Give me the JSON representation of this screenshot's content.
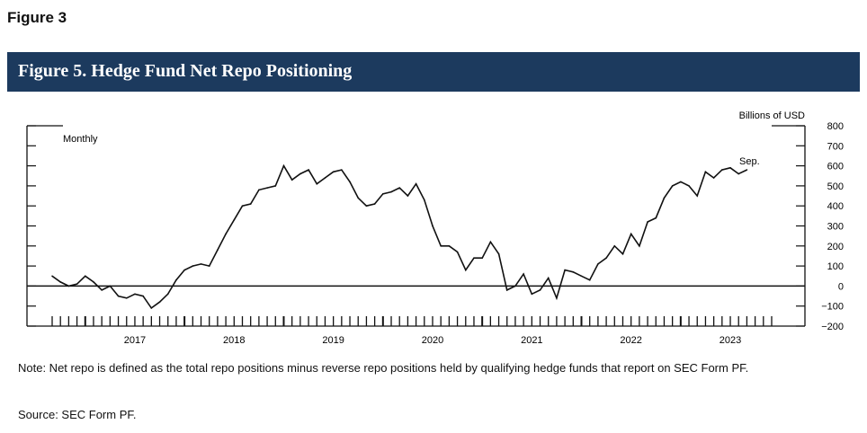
{
  "page": {
    "figure_label": "Figure 3",
    "banner_title": "Figure 5. Hedge Fund Net Repo Positioning",
    "note": "Note: Net repo is defined as the total repo positions minus reverse repo positions held by qualifying hedge funds that report on SEC Form PF.",
    "source": "Source: SEC Form PF.",
    "colors": {
      "banner": "#1c3a5e",
      "line": "#111111"
    }
  },
  "chart_data": {
    "type": "line",
    "title": "",
    "xlabel": "",
    "ylabel": "Billions of USD",
    "frequency_label": "Monthly",
    "annotation": "Sep.",
    "ylim": [
      -200,
      800
    ],
    "yticks": [
      800,
      700,
      600,
      500,
      400,
      300,
      200,
      100,
      0,
      -100,
      -200
    ],
    "ytick_labels": [
      "800",
      "700",
      "600",
      "500",
      "400",
      "300",
      "200",
      "100",
      "0",
      "−100",
      "−200"
    ],
    "xtick_labels": [
      "2017",
      "2018",
      "2019",
      "2020",
      "2021",
      "2022",
      "2023"
    ],
    "x_start": "2016-09",
    "x_end": "2023-12",
    "zero_line": true,
    "grid": false,
    "series": [
      {
        "name": "",
        "x": [
          "2016-09",
          "2016-10",
          "2016-11",
          "2016-12",
          "2017-01",
          "2017-02",
          "2017-03",
          "2017-04",
          "2017-05",
          "2017-06",
          "2017-07",
          "2017-08",
          "2017-09",
          "2017-10",
          "2017-11",
          "2017-12",
          "2018-01",
          "2018-02",
          "2018-03",
          "2018-04",
          "2018-05",
          "2018-06",
          "2018-07",
          "2018-08",
          "2018-09",
          "2018-10",
          "2018-11",
          "2018-12",
          "2019-01",
          "2019-02",
          "2019-03",
          "2019-04",
          "2019-05",
          "2019-06",
          "2019-07",
          "2019-08",
          "2019-09",
          "2019-10",
          "2019-11",
          "2019-12",
          "2020-01",
          "2020-02",
          "2020-03",
          "2020-04",
          "2020-05",
          "2020-06",
          "2020-07",
          "2020-08",
          "2020-09",
          "2020-10",
          "2020-11",
          "2020-12",
          "2021-01",
          "2021-02",
          "2021-03",
          "2021-04",
          "2021-05",
          "2021-06",
          "2021-07",
          "2021-08",
          "2021-09",
          "2021-10",
          "2021-11",
          "2021-12",
          "2022-01",
          "2022-02",
          "2022-03",
          "2022-04",
          "2022-05",
          "2022-06",
          "2022-07",
          "2022-08",
          "2022-09",
          "2022-10",
          "2022-11",
          "2022-12",
          "2023-01",
          "2023-02",
          "2023-03",
          "2023-04",
          "2023-05",
          "2023-06",
          "2023-07",
          "2023-08",
          "2023-09"
        ],
        "values": [
          50,
          20,
          0,
          10,
          50,
          20,
          -20,
          0,
          -50,
          -60,
          -40,
          -50,
          -110,
          -80,
          -40,
          30,
          80,
          100,
          110,
          100,
          180,
          260,
          330,
          400,
          410,
          480,
          490,
          500,
          600,
          530,
          560,
          580,
          510,
          540,
          570,
          580,
          520,
          440,
          400,
          410,
          460,
          470,
          490,
          450,
          510,
          430,
          300,
          200,
          200,
          170,
          80,
          140,
          140,
          220,
          160,
          -20,
          0,
          60,
          -40,
          -20,
          40,
          -60,
          80,
          70,
          50,
          30,
          110,
          140,
          200,
          160,
          260,
          200,
          320,
          340,
          440,
          500,
          520,
          500,
          450,
          570,
          540,
          580,
          590,
          560,
          580
        ]
      }
    ]
  }
}
